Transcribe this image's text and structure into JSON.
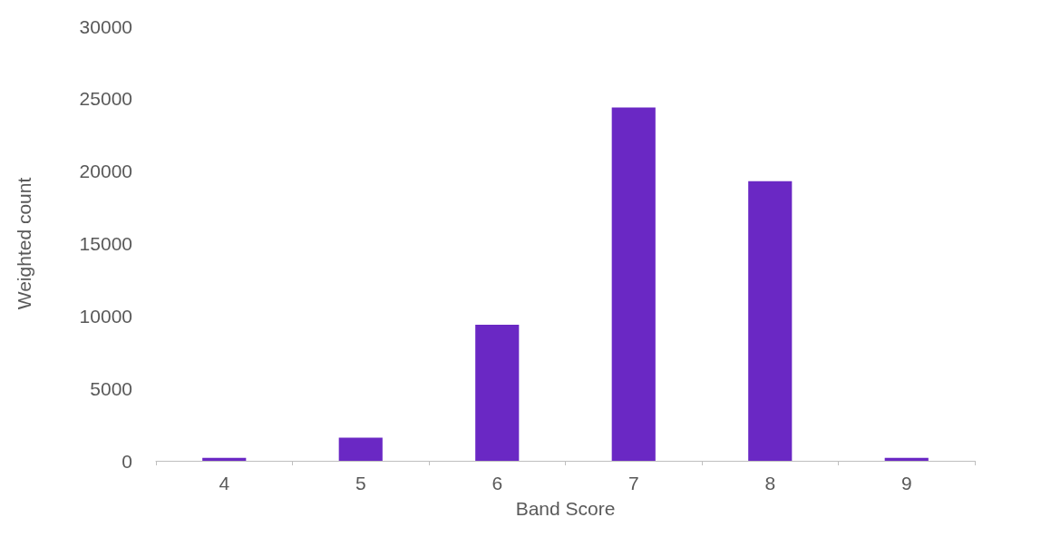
{
  "chart_data": {
    "type": "bar",
    "xlabel": "Band Score",
    "ylabel": "Weighted count",
    "categories": [
      "4",
      "5",
      "6",
      "7",
      "8",
      "9"
    ],
    "values": [
      200,
      1600,
      9400,
      24400,
      19300,
      200
    ],
    "color": "#6a28c4",
    "ylim": [
      0,
      30000
    ],
    "yticks": [
      0,
      5000,
      10000,
      15000,
      20000,
      25000,
      30000
    ],
    "grid": false
  }
}
